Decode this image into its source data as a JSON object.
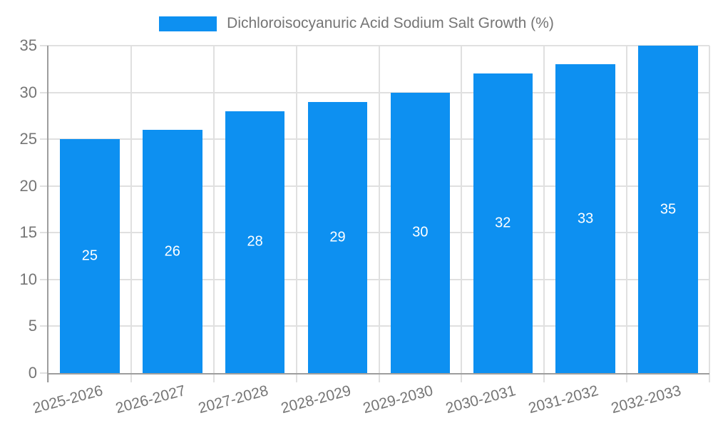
{
  "chart_data": {
    "type": "bar",
    "title": "Dichloroisocyanuric Acid Sodium Salt Growth (%)",
    "categories": [
      "2025-2026",
      "2026-2027",
      "2027-2028",
      "2028-2029",
      "2029-2030",
      "2030-2031",
      "2031-2032",
      "2032-2033"
    ],
    "values": [
      25,
      26,
      28,
      29,
      30,
      32,
      33,
      35
    ],
    "bar_value_labels": [
      "25",
      "26",
      "28",
      "29",
      "30",
      "32",
      "33",
      "35"
    ],
    "ylim": [
      0,
      35
    ],
    "yticks": [
      0,
      5,
      10,
      15,
      20,
      25,
      30,
      35
    ],
    "grid": true,
    "legend_position": "top",
    "xlabel": "",
    "ylabel": "",
    "x_label_rotation_deg": -15,
    "colors": {
      "bar": "#0d90f1",
      "bar_label_text": "#ffffff",
      "axis_line": "#9e9e9e",
      "gridline": "#e0e0e0",
      "tick_text": "#757575",
      "background": "#ffffff"
    }
  }
}
